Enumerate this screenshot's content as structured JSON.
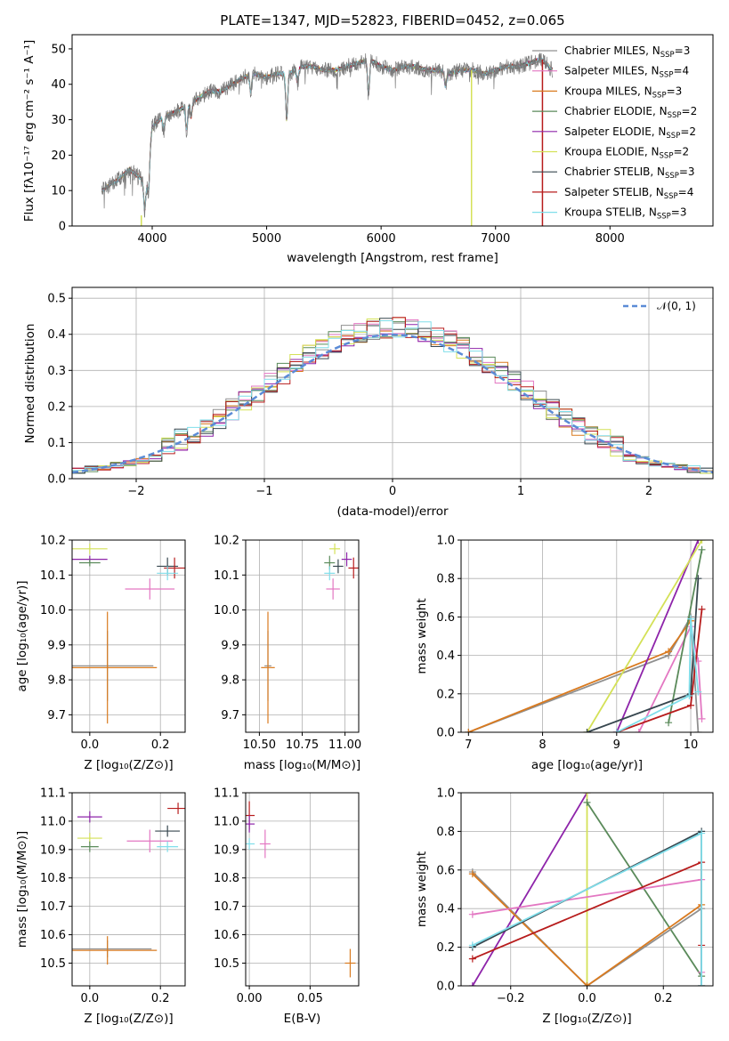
{
  "colors": {
    "chabrier_miles": "#909090",
    "salpeter_miles": "#e377c2",
    "kroupa_miles": "#d97a1f",
    "chabrier_elodie": "#5a8a5a",
    "salpeter_elodie": "#8e24aa",
    "kroupa_elodie": "#d4e157",
    "chabrier_stelib": "#37474f",
    "salpeter_stelib": "#b71c1c",
    "kroupa_stelib": "#80deea",
    "gaussian": "#5b8bd6",
    "grid": "#b0b0b0"
  },
  "chart_data": [
    {
      "id": "spectrum",
      "type": "line",
      "title": "PLATE=1347, MJD=52823, FIBERID=0452, z=0.065",
      "xlabel": "wavelength [Angstrom, rest frame]",
      "ylabel": "Flux [fλ10⁻¹⁷ erg cm⁻² s⁻¹ A⁻¹]",
      "xlim": [
        3300,
        8900
      ],
      "ylim": [
        0,
        54
      ],
      "xticks": [
        4000,
        5000,
        6000,
        7000,
        8000
      ],
      "yticks": [
        0,
        10,
        20,
        30,
        40,
        50
      ],
      "grid": false,
      "legend_position": "top-right",
      "legend": [
        {
          "label": "Chabrier MILES, N",
          "sub": "SSP",
          "suffix": "=3",
          "color": "chabrier_miles"
        },
        {
          "label": "Salpeter MILES, N",
          "sub": "SSP",
          "suffix": "=4",
          "color": "salpeter_miles"
        },
        {
          "label": "Kroupa MILES, N",
          "sub": "SSP",
          "suffix": "=3",
          "color": "kroupa_miles"
        },
        {
          "label": "Chabrier ELODIE, N",
          "sub": "SSP",
          "suffix": "=2",
          "color": "chabrier_elodie"
        },
        {
          "label": "Salpeter ELODIE, N",
          "sub": "SSP",
          "suffix": "=2",
          "color": "salpeter_elodie"
        },
        {
          "label": "Kroupa ELODIE, N",
          "sub": "SSP",
          "suffix": "=2",
          "color": "kroupa_elodie"
        },
        {
          "label": "Chabrier STELIB, N",
          "sub": "SSP",
          "suffix": "=3",
          "color": "chabrier_stelib"
        },
        {
          "label": "Salpeter STELIB, N",
          "sub": "SSP",
          "suffix": "=4",
          "color": "salpeter_stelib"
        },
        {
          "label": "Kroupa STELIB, N",
          "sub": "SSP",
          "suffix": "=3",
          "color": "kroupa_stelib"
        }
      ],
      "continuum": {
        "x": [
          3560,
          3700,
          3800,
          3880,
          3950,
          4000,
          4100,
          4200,
          4300,
          4400,
          4500,
          4600,
          4700,
          4800,
          4900,
          5000,
          5100,
          5200,
          5300,
          5400,
          5500,
          5600,
          5700,
          5800,
          5900,
          6000,
          6100,
          6200,
          6300,
          6400,
          6500,
          6600,
          6700,
          6800,
          6900,
          7000,
          7100,
          7200,
          7300,
          7400,
          7500
        ],
        "y": [
          10,
          13,
          16,
          14,
          12,
          28,
          31,
          32,
          34,
          36,
          38,
          38,
          40,
          42,
          43,
          42,
          43,
          43,
          45,
          45,
          44,
          44,
          45,
          46,
          47,
          45,
          44,
          45,
          45,
          44,
          44,
          43,
          44,
          44,
          43,
          44,
          45,
          45,
          46,
          47,
          44
        ]
      },
      "absorption_lines": [
        {
          "x": 3934,
          "depth": 8
        },
        {
          "x": 3969,
          "depth": 8
        },
        {
          "x": 4102,
          "depth": 4
        },
        {
          "x": 4300,
          "depth": 7
        },
        {
          "x": 4340,
          "depth": 4
        },
        {
          "x": 4861,
          "depth": 5
        },
        {
          "x": 5175,
          "depth": 13
        },
        {
          "x": 5270,
          "depth": 4
        },
        {
          "x": 5890,
          "depth": 10
        },
        {
          "x": 6563,
          "depth": 4
        }
      ],
      "spikes": [
        {
          "x": 3905,
          "series": "kroupa_elodie",
          "y": [
            0,
            3
          ]
        },
        {
          "x": 6790,
          "series": "kroupa_elodie",
          "y": [
            0,
            44
          ]
        },
        {
          "x": 7410,
          "series": "salpeter_stelib",
          "y": [
            0,
            47
          ]
        }
      ]
    },
    {
      "id": "residuals",
      "type": "area",
      "xlabel": "(data-model)/error",
      "ylabel": "Normed distribution",
      "xlim": [
        -2.5,
        2.5
      ],
      "ylim": [
        0,
        0.53
      ],
      "xticks": [
        -2,
        -1,
        0,
        1,
        2
      ],
      "xtick_labels": [
        "−2",
        "−1",
        "0",
        "1",
        "2"
      ],
      "yticks": [
        0.0,
        0.1,
        0.2,
        0.3,
        0.4,
        0.5
      ],
      "grid": true,
      "legend_position": "top-right",
      "legend": [
        {
          "label": "𝒩(0, 1)",
          "color": "gaussian",
          "style": "dashed"
        }
      ],
      "bin_width": 0.1,
      "histogram_series": [
        "chabrier_miles",
        "salpeter_miles",
        "kroupa_miles",
        "chabrier_elodie",
        "salpeter_elodie",
        "kroupa_elodie",
        "chabrier_stelib",
        "salpeter_stelib",
        "kroupa_stelib"
      ]
    },
    {
      "id": "z-age",
      "type": "scatter",
      "xlabel": "Z [log₁₀(Z/Z⊙)]",
      "ylabel": "age  [log₁₀(age/yr)]",
      "xlim": [
        -0.05,
        0.27
      ],
      "ylim": [
        9.65,
        10.2
      ],
      "xticks": [
        0.0,
        0.2
      ],
      "xtick_labels": [
        "0.0",
        "0.2"
      ],
      "yticks": [
        9.7,
        9.8,
        9.9,
        10.0,
        10.1,
        10.2
      ],
      "ytick_labels": [
        "9.7",
        "9.8",
        "9.9",
        "10.0",
        "10.1",
        "10.2"
      ],
      "grid": true,
      "points": [
        {
          "series": "kroupa_elodie",
          "x": 0.0,
          "y": 10.175,
          "xerr": 0.05,
          "yerr": 0.0
        },
        {
          "series": "salpeter_elodie",
          "x": 0.0,
          "y": 10.145,
          "xerr": 0.05,
          "yerr": 0.01
        },
        {
          "series": "chabrier_elodie",
          "x": 0.0,
          "y": 10.135,
          "xerr": 0.03,
          "yerr": 0.01
        },
        {
          "series": "chabrier_stelib",
          "x": 0.22,
          "y": 10.125,
          "xerr": 0.03,
          "yerr": 0.025
        },
        {
          "series": "salpeter_stelib",
          "x": 0.24,
          "y": 10.12,
          "xerr": 0.03,
          "yerr": 0.03
        },
        {
          "series": "kroupa_stelib",
          "x": 0.22,
          "y": 10.105,
          "xerr": 0.03,
          "yerr": 0.02
        },
        {
          "series": "salpeter_miles",
          "x": 0.17,
          "y": 10.06,
          "xerr": 0.07,
          "yerr": 0.03
        },
        {
          "series": "chabrier_miles",
          "x": 0.05,
          "y": 9.84,
          "xerr": 0.13,
          "yerr": 0.1
        },
        {
          "series": "kroupa_miles",
          "x": 0.05,
          "y": 9.835,
          "xerr": 0.14,
          "yerr": 0.16
        }
      ]
    },
    {
      "id": "mass-age",
      "type": "scatter",
      "xlabel": "mass [log₁₀(M/M⊙)]",
      "ylabel": "",
      "xlim": [
        10.42,
        11.08
      ],
      "ylim": [
        9.65,
        10.2
      ],
      "xticks": [
        10.5,
        10.75,
        11.0
      ],
      "xtick_labels": [
        "10.50",
        "10.75",
        "11.00"
      ],
      "yticks": [
        9.7,
        9.8,
        9.9,
        10.0,
        10.1,
        10.2
      ],
      "ytick_labels": [
        "9.7",
        "9.8",
        "9.9",
        "10.0",
        "10.1",
        "10.2"
      ],
      "grid": true,
      "points": [
        {
          "series": "kroupa_elodie",
          "x": 10.94,
          "y": 10.175,
          "xerr": 0.0,
          "yerr": 0.0
        },
        {
          "series": "salpeter_elodie",
          "x": 11.01,
          "y": 10.145,
          "xerr": 0.03,
          "yerr": 0.02
        },
        {
          "series": "chabrier_elodie",
          "x": 10.91,
          "y": 10.135,
          "xerr": 0.0,
          "yerr": 0.02
        },
        {
          "series": "chabrier_stelib",
          "x": 10.96,
          "y": 10.125,
          "xerr": 0.03,
          "yerr": 0.02
        },
        {
          "series": "salpeter_stelib",
          "x": 11.05,
          "y": 10.12,
          "xerr": 0.03,
          "yerr": 0.03
        },
        {
          "series": "kroupa_stelib",
          "x": 10.91,
          "y": 10.105,
          "xerr": 0.0,
          "yerr": 0.02
        },
        {
          "series": "salpeter_miles",
          "x": 10.93,
          "y": 10.06,
          "xerr": 0.04,
          "yerr": 0.03
        },
        {
          "series": "chabrier_miles",
          "x": 10.55,
          "y": 9.84,
          "xerr": 0.02,
          "yerr": 0.1
        },
        {
          "series": "kroupa_miles",
          "x": 10.55,
          "y": 9.835,
          "xerr": 0.04,
          "yerr": 0.16
        }
      ]
    },
    {
      "id": "age-weights",
      "type": "line",
      "xlabel": "age  [log₁₀(age/yr)]",
      "ylabel": "mass weight",
      "xlim": [
        6.9,
        10.3
      ],
      "ylim": [
        0,
        1
      ],
      "xticks": [
        7,
        8,
        9,
        10
      ],
      "xtick_labels": [
        "7",
        "8",
        "9",
        "10"
      ],
      "yticks": [
        0.0,
        0.2,
        0.4,
        0.6,
        0.8,
        1.0
      ],
      "ytick_labels": [
        "0.0",
        "0.2",
        "0.4",
        "0.6",
        "0.8",
        "1.0"
      ],
      "grid": true,
      "series": [
        {
          "name": "chabrier_miles",
          "x": [
            7.0,
            9.7,
            10.0,
            10.1
          ],
          "y": [
            0.0,
            0.4,
            0.6,
            0.0
          ]
        },
        {
          "name": "kroupa_miles",
          "x": [
            7.0,
            9.7,
            10.0
          ],
          "y": [
            0.0,
            0.42,
            0.58
          ]
        },
        {
          "name": "salpeter_miles",
          "x": [
            9.3,
            10.0,
            10.1,
            10.15
          ],
          "y": [
            0.0,
            0.55,
            0.37,
            0.07
          ]
        },
        {
          "name": "chabrier_elodie",
          "x": [
            9.7,
            10.15
          ],
          "y": [
            0.05,
            0.95
          ]
        },
        {
          "name": "salpeter_elodie",
          "x": [
            9.0,
            10.1
          ],
          "y": [
            0.0,
            1.0
          ]
        },
        {
          "name": "kroupa_elodie",
          "x": [
            8.6,
            10.15
          ],
          "y": [
            0.0,
            1.0
          ]
        },
        {
          "name": "chabrier_stelib",
          "x": [
            8.6,
            10.0,
            10.1
          ],
          "y": [
            0.0,
            0.2,
            0.8
          ]
        },
        {
          "name": "salpeter_stelib",
          "x": [
            9.0,
            10.0,
            10.15
          ],
          "y": [
            0.0,
            0.14,
            0.64
          ]
        },
        {
          "name": "kroupa_stelib",
          "x": [
            9.0,
            9.98,
            10.0,
            10.1
          ],
          "y": [
            0.0,
            0.19,
            0.59,
            0.21
          ]
        }
      ]
    },
    {
      "id": "z-mass",
      "type": "scatter",
      "xlabel": "Z [log₁₀(Z/Z⊙)]",
      "ylabel": "mass [log₁₀(M/M⊙)]",
      "xlim": [
        -0.05,
        0.27
      ],
      "ylim": [
        10.42,
        11.1
      ],
      "xticks": [
        0.0,
        0.2
      ],
      "xtick_labels": [
        "0.0",
        "0.2"
      ],
      "yticks": [
        10.5,
        10.6,
        10.7,
        10.8,
        10.9,
        11.0,
        11.1
      ],
      "ytick_labels": [
        "10.5",
        "10.6",
        "10.7",
        "10.8",
        "10.9",
        "11.0",
        "11.1"
      ],
      "grid": true,
      "points": [
        {
          "series": "salpeter_stelib",
          "x": 0.25,
          "y": 11.045,
          "xerr": 0.03,
          "yerr": 0.02
        },
        {
          "series": "salpeter_elodie",
          "x": 0.0,
          "y": 11.015,
          "xerr": 0.035,
          "yerr": 0.02
        },
        {
          "series": "chabrier_stelib",
          "x": 0.22,
          "y": 10.965,
          "xerr": 0.035,
          "yerr": 0.02
        },
        {
          "series": "kroupa_elodie",
          "x": 0.0,
          "y": 10.94,
          "xerr": 0.035,
          "yerr": 0.0
        },
        {
          "series": "salpeter_miles",
          "x": 0.17,
          "y": 10.93,
          "xerr": 0.065,
          "yerr": 0.04
        },
        {
          "series": "chabrier_elodie",
          "x": 0.0,
          "y": 10.91,
          "xerr": 0.025,
          "yerr": 0.0
        },
        {
          "series": "kroupa_stelib",
          "x": 0.22,
          "y": 10.91,
          "xerr": 0.03,
          "yerr": 0.0
        },
        {
          "series": "chabrier_miles",
          "x": 0.05,
          "y": 10.55,
          "xerr": 0.125,
          "yerr": 0.03
        },
        {
          "series": "kroupa_miles",
          "x": 0.05,
          "y": 10.545,
          "xerr": 0.14,
          "yerr": 0.05
        }
      ]
    },
    {
      "id": "ebv-mass",
      "type": "scatter",
      "xlabel": "E(B-V)",
      "ylabel": "",
      "xlim": [
        -0.003,
        0.09
      ],
      "ylim": [
        10.42,
        11.1
      ],
      "xticks": [
        0.0,
        0.05
      ],
      "xtick_labels": [
        "0.00",
        "0.05"
      ],
      "yticks": [
        10.5,
        10.6,
        10.7,
        10.8,
        10.9,
        11.0,
        11.1
      ],
      "ytick_labels": [
        "10.5",
        "10.6",
        "10.7",
        "10.8",
        "10.9",
        "11.0",
        "11.1"
      ],
      "grid": true,
      "points": [
        {
          "series": "salpeter_stelib",
          "x": 0.0,
          "y": 11.02,
          "xerr": 0.0,
          "yerr": 0.05
        },
        {
          "series": "salpeter_elodie",
          "x": 0.0,
          "y": 10.99,
          "xerr": 0.0,
          "yerr": 0.03
        },
        {
          "series": "kroupa_stelib",
          "x": 0.0,
          "y": 10.92,
          "xerr": 0.0,
          "yerr": 0.02
        },
        {
          "series": "salpeter_miles",
          "x": 0.013,
          "y": 10.92,
          "xerr": 0.0,
          "yerr": 0.05
        },
        {
          "series": "kroupa_miles",
          "x": 0.083,
          "y": 10.5,
          "xerr": 0.0,
          "yerr": 0.05
        }
      ]
    },
    {
      "id": "z-weights",
      "type": "line",
      "xlabel": "Z [log₁₀(Z/Z⊙)]",
      "ylabel": "mass weight",
      "xlim": [
        -0.33,
        0.33
      ],
      "ylim": [
        0,
        1
      ],
      "xticks": [
        -0.2,
        0.0,
        0.2
      ],
      "xtick_labels": [
        "−0.2",
        "0.0",
        "0.2"
      ],
      "yticks": [
        0.0,
        0.2,
        0.4,
        0.6,
        0.8,
        1.0
      ],
      "ytick_labels": [
        "0.0",
        "0.2",
        "0.4",
        "0.6",
        "0.8",
        "1.0"
      ],
      "grid": true,
      "series": [
        {
          "name": "salpeter_elodie",
          "x": [
            -0.3,
            0.0
          ],
          "y": [
            0.0,
            1.0
          ]
        },
        {
          "name": "kroupa_elodie",
          "x": [
            0.0,
            0.0
          ],
          "y": [
            0.0,
            1.0
          ]
        },
        {
          "name": "chabrier_elodie",
          "x": [
            0.0,
            0.3
          ],
          "y": [
            0.95,
            0.05
          ]
        },
        {
          "name": "chabrier_miles",
          "x": [
            -0.3,
            0.0,
            0.3,
            0.3
          ],
          "y": [
            0.59,
            0.0,
            0.4,
            0.0
          ]
        },
        {
          "name": "kroupa_miles",
          "x": [
            -0.3,
            0.0,
            0.3
          ],
          "y": [
            0.58,
            0.0,
            0.42
          ]
        },
        {
          "name": "salpeter_miles",
          "x": [
            -0.3,
            0.3,
            0.3
          ],
          "y": [
            0.37,
            0.55,
            0.07
          ]
        },
        {
          "name": "chabrier_stelib",
          "x": [
            -0.3,
            0.3,
            0.3
          ],
          "y": [
            0.2,
            0.8,
            0.0
          ]
        },
        {
          "name": "salpeter_stelib",
          "x": [
            -0.3,
            0.3,
            0.3
          ],
          "y": [
            0.14,
            0.64,
            0.21
          ]
        },
        {
          "name": "kroupa_stelib",
          "x": [
            -0.3,
            0.3,
            0.3
          ],
          "y": [
            0.21,
            0.79,
            0.0
          ]
        }
      ]
    }
  ]
}
